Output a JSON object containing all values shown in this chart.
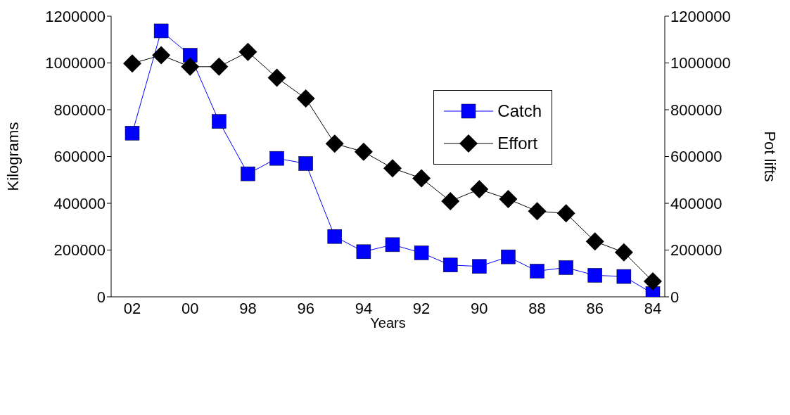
{
  "chart_data": {
    "type": "line",
    "xlabel": "Years",
    "ylabel": "Kilograms",
    "y2label": "Pot lifts",
    "categories": [
      "02",
      null,
      "00",
      null,
      "98",
      null,
      "96",
      null,
      "94",
      null,
      "92",
      null,
      "90",
      null,
      "88",
      null,
      "86",
      null,
      "84"
    ],
    "series": [
      {
        "name": "Catch",
        "color": "#0000ff",
        "marker": "square",
        "values": [
          700000,
          1137000,
          1033000,
          750000,
          526000,
          592000,
          570000,
          258000,
          193000,
          223000,
          188000,
          136000,
          130000,
          171000,
          110000,
          125000,
          92000,
          87000,
          14000
        ]
      },
      {
        "name": "Effort",
        "color": "#000000",
        "marker": "diamond",
        "axis": "y2",
        "values": [
          998000,
          1033000,
          984000,
          984000,
          1047000,
          937000,
          848000,
          655000,
          620000,
          550000,
          507000,
          409000,
          460000,
          418000,
          366000,
          357000,
          237000,
          190000,
          66000
        ]
      }
    ],
    "ylim": [
      0,
      1200000
    ],
    "yticks": [
      0,
      200000,
      400000,
      600000,
      800000,
      1000000,
      1200000
    ],
    "y2lim": [
      0,
      1200000
    ],
    "y2ticks": [
      0,
      200000,
      400000,
      600000,
      800000,
      1000000,
      1200000
    ],
    "grid": false,
    "legend": "top right",
    "line_style": "solid"
  }
}
